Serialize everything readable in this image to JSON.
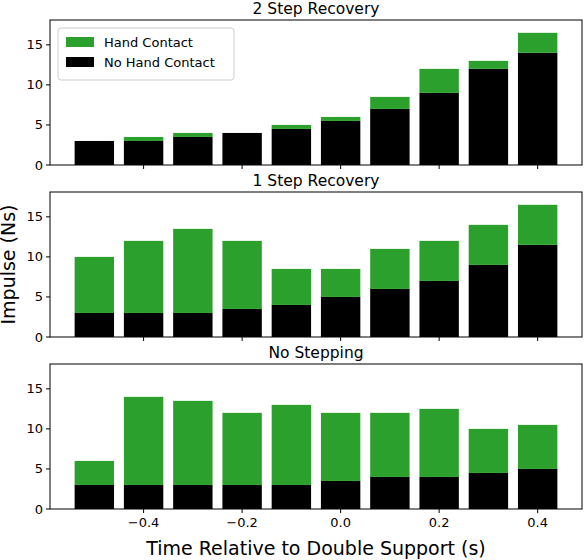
{
  "chart_data": [
    {
      "type": "bar",
      "title": "2 Step Recovery",
      "stacked": true,
      "legend": "upper left",
      "tick_labels": "y",
      "x": [
        -0.5,
        -0.4,
        -0.3,
        -0.2,
        -0.1,
        0.0,
        0.1,
        0.2,
        0.3,
        0.4
      ],
      "series": [
        {
          "name": "No Hand Contact",
          "color": "#000000",
          "values": [
            3,
            3,
            3.5,
            4,
            4.5,
            5.5,
            7,
            9,
            12,
            14
          ]
        },
        {
          "name": "Hand Contact",
          "color": "#2ca02c",
          "values": [
            0,
            0.5,
            0.5,
            0,
            0.5,
            0.5,
            1.5,
            3,
            1,
            2.5
          ]
        }
      ],
      "xlim": [
        -0.59,
        0.49
      ],
      "ylim": [
        0,
        18.1
      ],
      "xticks": [
        {
          "value": -0.4,
          "label": "−0.4"
        },
        {
          "value": -0.2,
          "label": "−0.2"
        },
        {
          "value": 0.0,
          "label": "0.0"
        },
        0.2,
        0.4
      ],
      "yticks": [
        0,
        5,
        10,
        15
      ]
    },
    {
      "type": "bar",
      "title": "1 Step Recovery",
      "stacked": true,
      "tick_labels": "y",
      "y_label": "Impulse (Ns)",
      "x": [
        -0.5,
        -0.4,
        -0.3,
        -0.2,
        -0.1,
        0.0,
        0.1,
        0.2,
        0.3,
        0.4
      ],
      "series": [
        {
          "color": "#000000",
          "values": [
            3,
            3,
            3,
            3.5,
            4,
            5,
            6,
            7,
            9,
            11.5
          ]
        },
        {
          "color": "#2ca02c",
          "values": [
            7,
            9,
            10.5,
            8.5,
            4.5,
            3.5,
            5,
            5,
            5,
            5
          ]
        }
      ],
      "xlim": [
        -0.59,
        0.49
      ],
      "ylim": [
        0,
        18.1
      ],
      "xticks": [
        {
          "value": -0.4,
          "label": "−0.4"
        },
        {
          "value": -0.2,
          "label": "−0.2"
        },
        {
          "value": 0.0,
          "label": "0.0"
        },
        0.2,
        0.4
      ],
      "yticks": [
        0,
        5,
        10,
        15
      ]
    },
    {
      "type": "bar",
      "title": "No Stepping",
      "stacked": true,
      "x_label": "Time Relative to Double Support (s)",
      "x": [
        -0.5,
        -0.4,
        -0.3,
        -0.2,
        -0.1,
        0.0,
        0.1,
        0.2,
        0.3,
        0.4
      ],
      "series": [
        {
          "color": "#000000",
          "values": [
            3,
            3,
            3,
            3,
            3,
            3.5,
            4,
            4,
            4.5,
            5
          ]
        },
        {
          "color": "#2ca02c",
          "values": [
            3,
            11,
            10.5,
            9,
            10,
            8.5,
            8,
            8.5,
            5.5,
            5.5
          ]
        }
      ],
      "xlim": [
        -0.59,
        0.49
      ],
      "ylim": [
        0,
        18.1
      ],
      "xticks": [
        {
          "value": -0.4,
          "label": "−0.4"
        },
        {
          "value": -0.2,
          "label": "−0.2"
        },
        {
          "value": 0.0,
          "label": "0.0"
        },
        0.2,
        0.4
      ],
      "yticks": [
        0,
        5,
        10,
        15
      ]
    }
  ]
}
